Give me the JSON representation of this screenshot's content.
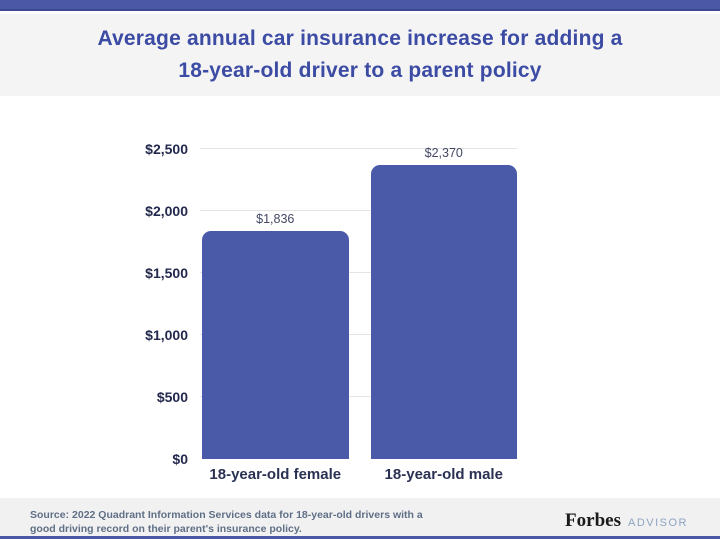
{
  "header": {
    "title_line1": "Average annual car insurance increase for adding a",
    "title_line2": "18-year-old driver to a parent policy"
  },
  "chart_data": {
    "type": "bar",
    "title": "Average annual car insurance increase for adding a 18-year-old driver to a parent policy",
    "categories": [
      "18-year-old female",
      "18-year-old male"
    ],
    "values": [
      1836,
      2370
    ],
    "value_labels": [
      "$1,836",
      "$2,370"
    ],
    "y_ticks": [
      0,
      500,
      1000,
      1500,
      2000,
      2500
    ],
    "y_tick_labels": [
      "$0",
      "$500",
      "$1,000",
      "$1,500",
      "$2,000",
      "$2,500"
    ],
    "ylim": [
      0,
      2500
    ],
    "xlabel": "",
    "ylabel": "",
    "grid": "horizontal",
    "legend": "none",
    "bar_color": "#4b5aa8"
  },
  "footer": {
    "source_line1": "Source: 2022 Quadrant Information Services data for 18-year-old drivers with a",
    "source_line2": "good driving record on their parent's insurance policy.",
    "brand": "Forbes",
    "brand_suffix": "ADVISOR"
  },
  "colors": {
    "accent": "#4a58a5",
    "title_text": "#3c4ba3",
    "axis_text": "#23294d",
    "gridline": "#e4e4e6",
    "header_bg": "#f4f4f5",
    "footer_bg": "#f1f1f2",
    "source_text": "#5f6f85",
    "advisor_text": "#8ea3c2"
  }
}
